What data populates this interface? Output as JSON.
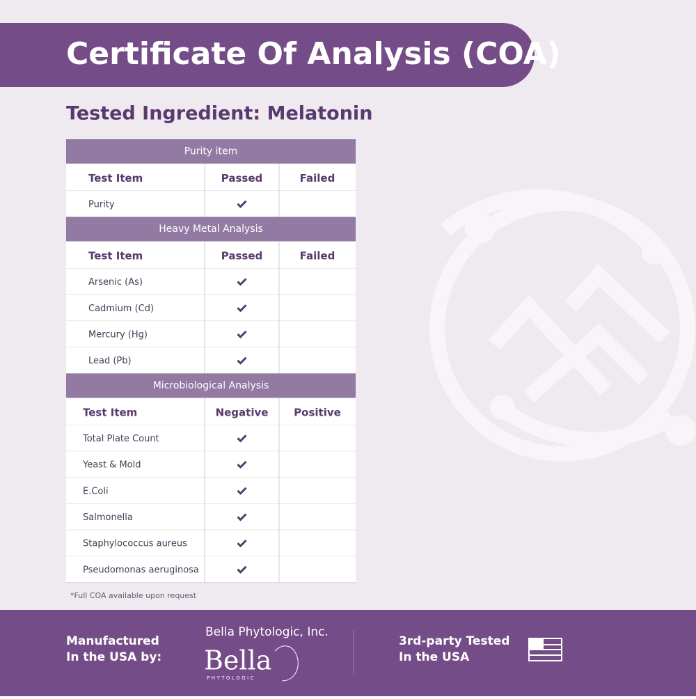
{
  "header": {
    "title": "Certificate Of Analysis (COA)",
    "subtitle": "Tested Ingredient: Melatonin"
  },
  "sections": [
    {
      "title": "Purity item",
      "columns": [
        "Test Item",
        "Passed",
        "Failed"
      ],
      "rows": [
        "Purity"
      ]
    },
    {
      "title": "Heavy Metal Analysis",
      "columns": [
        "Test Item",
        "Passed",
        "Failed"
      ],
      "rows": [
        "Arsenic (As)",
        "Cadmium (Cd)",
        "Mercury (Hg)",
        "Lead (Pb)"
      ]
    },
    {
      "title": "Microbiological Analysis",
      "columns": [
        "Test Item",
        "Negative",
        "Positive"
      ],
      "rows": [
        "Total Plate Count",
        "Yeast & Mold",
        "E.Coli",
        "Salmonella",
        "Staphylococcus aureus",
        "Pseudomonas aeruginosa"
      ]
    }
  ],
  "footnote": "*Full COA available upon request",
  "footer": {
    "manufactured": [
      "Manufactured",
      "In the USA by:"
    ],
    "company": "Bella Phytologic, Inc.",
    "logo_name": "Bella",
    "logo_sub": "PHYTOLOGIC",
    "tested": [
      "3rd-party Tested",
      "In the USA"
    ]
  }
}
